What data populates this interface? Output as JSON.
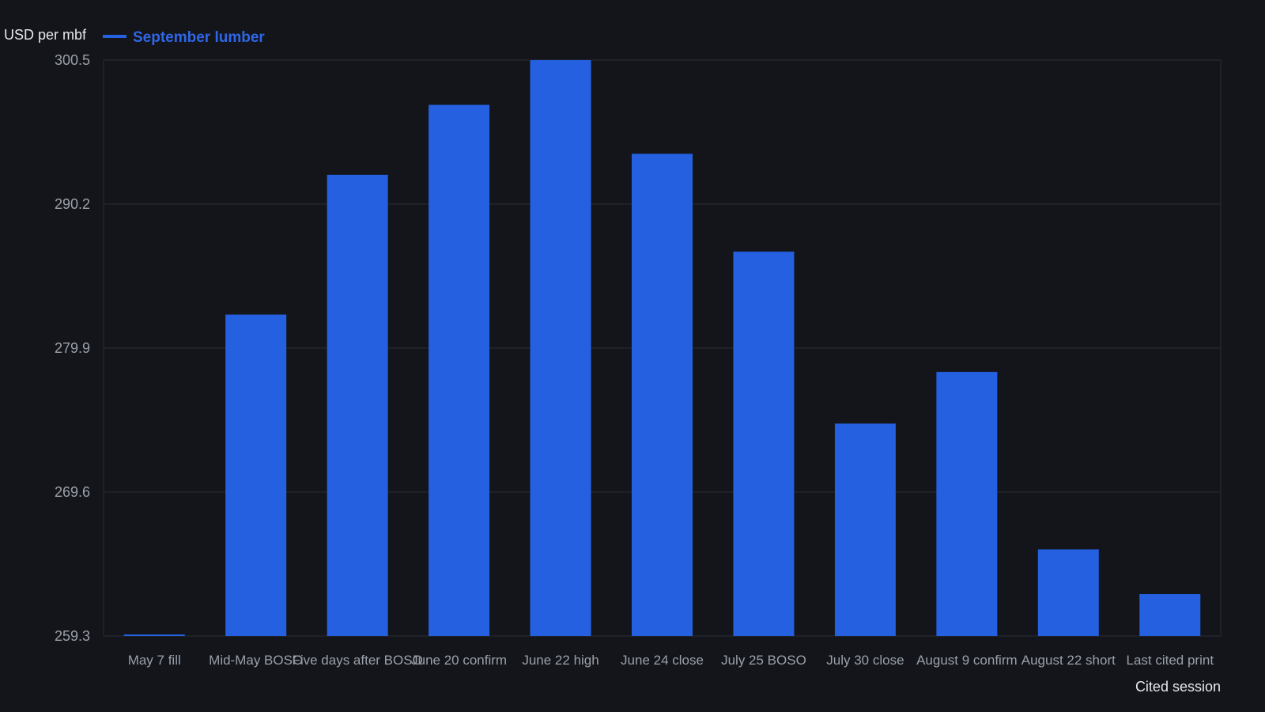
{
  "chart_data": {
    "type": "bar",
    "ylabel": "USD per mbf",
    "xlabel": "Cited session",
    "legend": "top-left",
    "grid": true,
    "ylim": [
      259.3,
      300.5
    ],
    "yticks": [
      "300.5",
      "290.2",
      "279.9",
      "269.6",
      "259.3"
    ],
    "categories": [
      "May 7 fill",
      "Mid-May BOSO",
      "Five days after BOSO",
      "June 20 confirm",
      "June 22 high",
      "June 24 close",
      "July 25 BOSO",
      "July 30 close",
      "August 9 confirm",
      "August 22 short",
      "Last cited print"
    ],
    "series": [
      {
        "name": "September lumber",
        "color": "#2560e0",
        "values": [
          259.4,
          282.3,
          292.3,
          297.3,
          300.5,
          293.8,
          286.8,
          274.5,
          278.2,
          265.5,
          262.3
        ]
      }
    ]
  }
}
